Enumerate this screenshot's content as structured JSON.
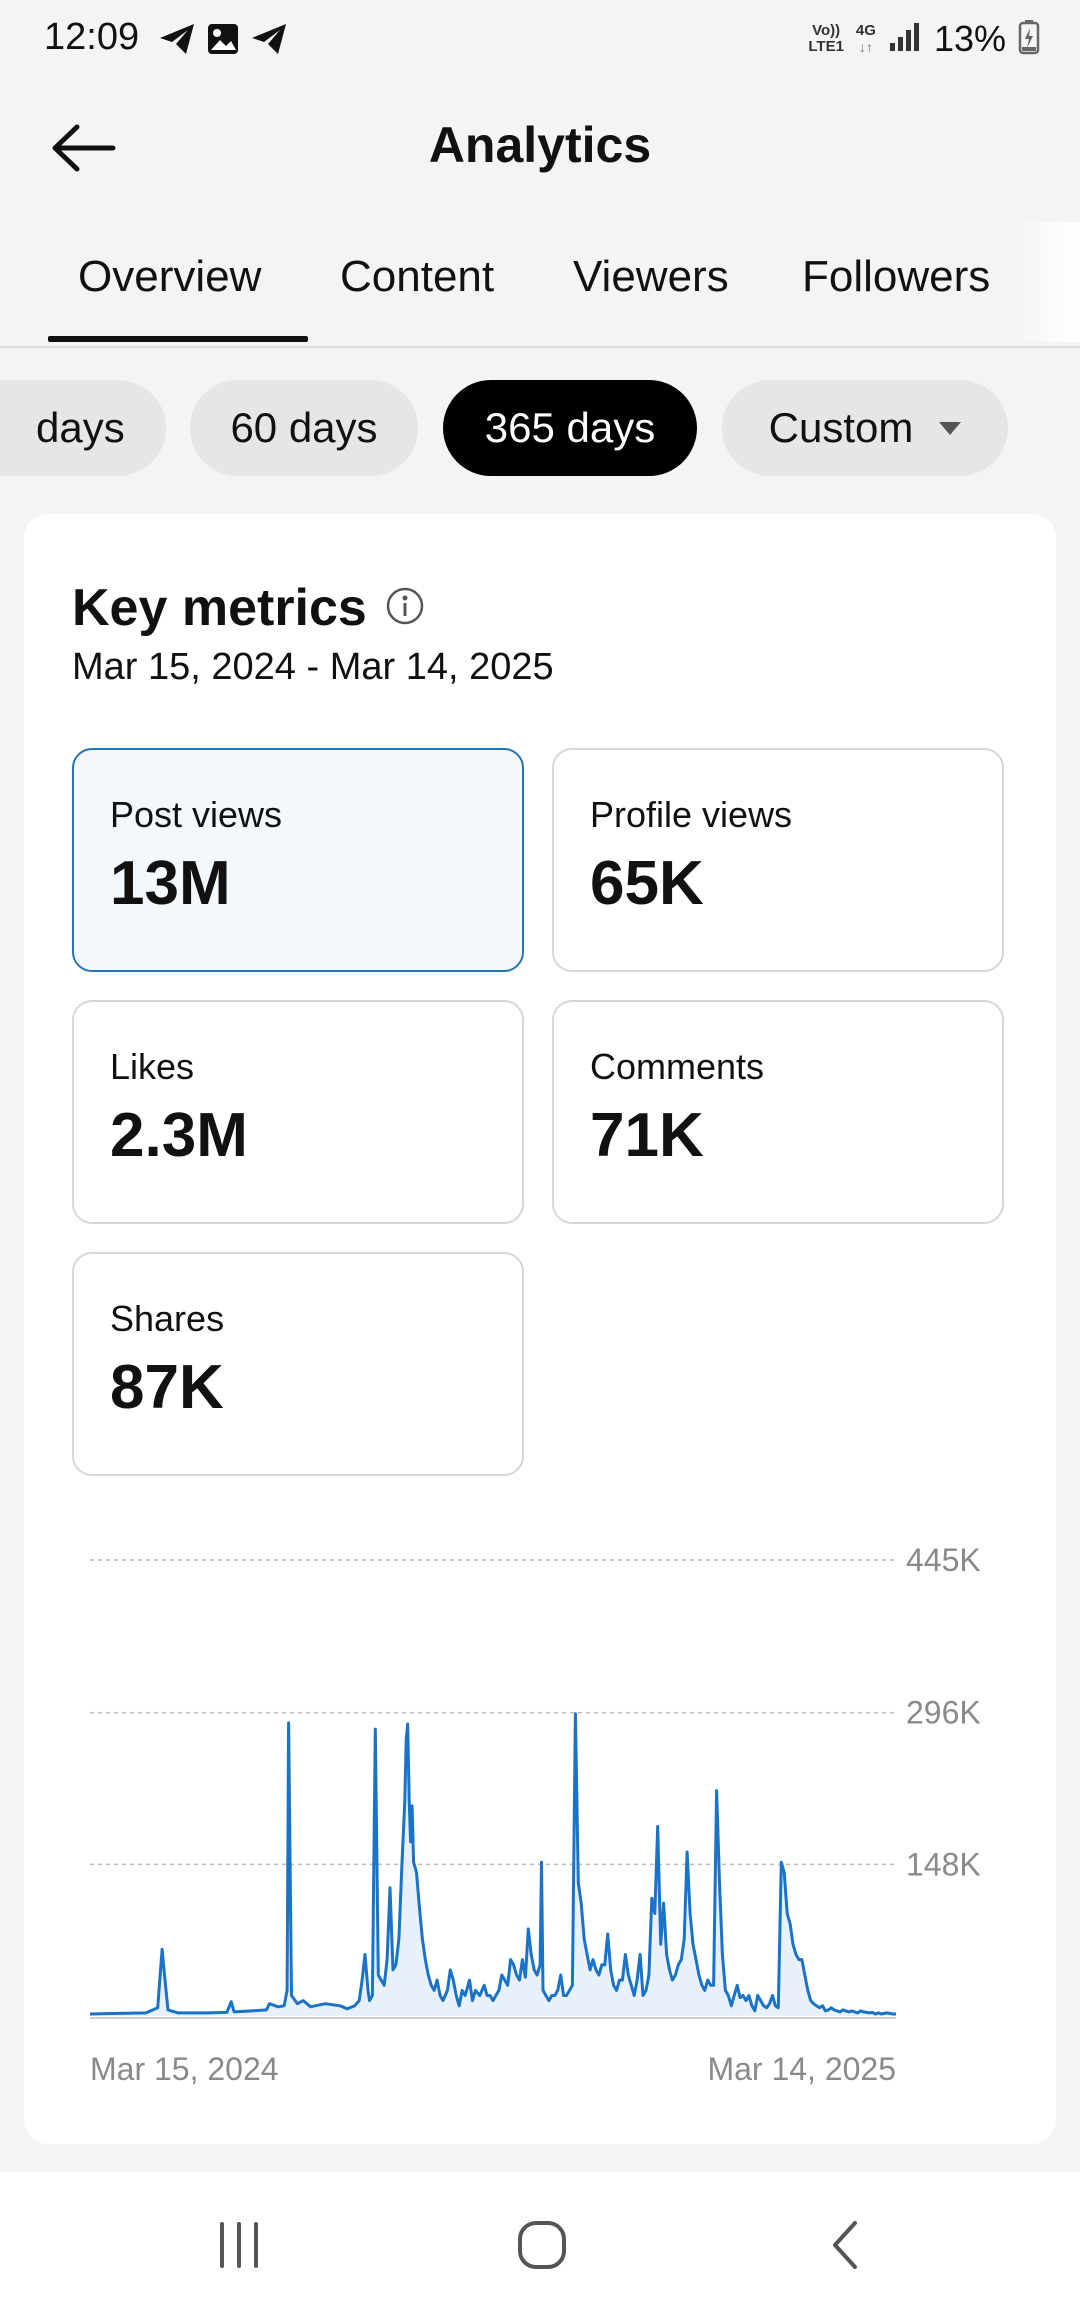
{
  "status_bar": {
    "time": "12:09",
    "net_top": "Vo))",
    "net_bottom": "LTE1",
    "net_type": "4G",
    "battery": "13%",
    "icons": [
      "telegram-icon",
      "image-icon",
      "telegram-icon",
      "signal-icon",
      "battery-icon"
    ]
  },
  "header": {
    "title": "Analytics",
    "back_icon": "arrow-left-icon"
  },
  "tabs": [
    {
      "label": "Overview",
      "selected": true
    },
    {
      "label": "Content"
    },
    {
      "label": "Viewers"
    },
    {
      "label": "Followers"
    }
  ],
  "ranges": [
    {
      "label": "days"
    },
    {
      "label": "60 days"
    },
    {
      "label": "365 days",
      "selected": true
    },
    {
      "label": "Custom"
    }
  ],
  "key_metrics": {
    "title": "Key metrics",
    "info_icon": "info-icon",
    "date_range": "Mar 15, 2024 - Mar 14, 2025",
    "metrics": [
      {
        "label": "Post views",
        "value": "13M",
        "selected": true
      },
      {
        "label": "Profile views",
        "value": "65K"
      },
      {
        "label": "Likes",
        "value": "2.3M"
      },
      {
        "label": "Comments",
        "value": "71K"
      },
      {
        "label": "Shares",
        "value": "87K"
      }
    ]
  },
  "chart_data": {
    "type": "area",
    "title": "",
    "xlabel": "",
    "ylabel": "",
    "x_tick_labels": [
      "Mar 15, 2024",
      "Mar 14, 2025"
    ],
    "y_tick_labels": [
      "445K",
      "296K",
      "148K"
    ],
    "y_ticks": [
      445000,
      296000,
      148000
    ],
    "ylim": [
      0,
      445000
    ],
    "x_range": [
      "2024-03-15",
      "2025-03-14"
    ],
    "grid": true,
    "colors": {
      "line": "#1a73c8",
      "fill": "#e8f1fb"
    },
    "series": [
      {
        "values": [
          [
            0,
            2000
          ],
          [
            20,
            2500
          ],
          [
            38,
            3000
          ],
          [
            46,
            8000
          ],
          [
            49,
            65000
          ],
          [
            51,
            35000
          ],
          [
            53,
            6000
          ],
          [
            60,
            3000
          ],
          [
            80,
            3000
          ],
          [
            93,
            3500
          ],
          [
            96,
            14000
          ],
          [
            98,
            4000
          ],
          [
            110,
            5000
          ],
          [
            120,
            6000
          ],
          [
            122,
            12000
          ],
          [
            128,
            9000
          ],
          [
            132,
            10000
          ],
          [
            134,
            25000
          ],
          [
            135,
            286000
          ],
          [
            137,
            20000
          ],
          [
            141,
            12000
          ],
          [
            145,
            15000
          ],
          [
            150,
            9000
          ],
          [
            160,
            12000
          ],
          [
            170,
            10000
          ],
          [
            175,
            7000
          ],
          [
            180,
            10000
          ],
          [
            183,
            15000
          ],
          [
            185,
            35000
          ],
          [
            187,
            60000
          ],
          [
            189,
            25000
          ],
          [
            190,
            15000
          ],
          [
            192,
            20000
          ],
          [
            194,
            280000
          ],
          [
            196,
            40000
          ],
          [
            198,
            35000
          ],
          [
            200,
            30000
          ],
          [
            202,
            55000
          ],
          [
            204,
            125000
          ],
          [
            206,
            45000
          ],
          [
            208,
            50000
          ],
          [
            210,
            75000
          ],
          [
            212,
            145000
          ],
          [
            214,
            210000
          ],
          [
            215,
            270000
          ],
          [
            216,
            285000
          ],
          [
            217,
            210000
          ],
          [
            218,
            170000
          ],
          [
            219,
            205000
          ],
          [
            220,
            150000
          ],
          [
            222,
            140000
          ],
          [
            224,
            105000
          ],
          [
            226,
            75000
          ],
          [
            228,
            55000
          ],
          [
            230,
            40000
          ],
          [
            232,
            30000
          ],
          [
            234,
            25000
          ],
          [
            236,
            35000
          ],
          [
            238,
            20000
          ],
          [
            240,
            15000
          ],
          [
            243,
            25000
          ],
          [
            245,
            45000
          ],
          [
            247,
            35000
          ],
          [
            249,
            20000
          ],
          [
            251,
            10000
          ],
          [
            253,
            25000
          ],
          [
            255,
            20000
          ],
          [
            258,
            35000
          ],
          [
            260,
            15000
          ],
          [
            262,
            25000
          ],
          [
            265,
            20000
          ],
          [
            268,
            30000
          ],
          [
            270,
            20000
          ],
          [
            272,
            20000
          ],
          [
            274,
            15000
          ],
          [
            276,
            20000
          ],
          [
            278,
            25000
          ],
          [
            280,
            40000
          ],
          [
            282,
            35000
          ],
          [
            284,
            30000
          ],
          [
            286,
            55000
          ],
          [
            288,
            50000
          ],
          [
            290,
            40000
          ],
          [
            292,
            35000
          ],
          [
            294,
            55000
          ],
          [
            296,
            38000
          ],
          [
            298,
            85000
          ],
          [
            300,
            60000
          ],
          [
            302,
            45000
          ],
          [
            304,
            40000
          ],
          [
            306,
            50000
          ],
          [
            307,
            150000
          ],
          [
            308,
            25000
          ],
          [
            310,
            20000
          ],
          [
            312,
            15000
          ],
          [
            314,
            20000
          ],
          [
            316,
            20000
          ],
          [
            318,
            25000
          ],
          [
            320,
            40000
          ],
          [
            322,
            20000
          ],
          [
            324,
            20000
          ],
          [
            326,
            25000
          ],
          [
            328,
            30000
          ],
          [
            330,
            295000
          ],
          [
            332,
            130000
          ],
          [
            334,
            110000
          ],
          [
            336,
            75000
          ],
          [
            338,
            60000
          ],
          [
            340,
            45000
          ],
          [
            342,
            55000
          ],
          [
            344,
            45000
          ],
          [
            346,
            40000
          ],
          [
            348,
            50000
          ],
          [
            350,
            50000
          ],
          [
            352,
            80000
          ],
          [
            354,
            45000
          ],
          [
            356,
            30000
          ],
          [
            358,
            25000
          ],
          [
            360,
            35000
          ],
          [
            362,
            35000
          ],
          [
            364,
            60000
          ],
          [
            366,
            40000
          ],
          [
            368,
            30000
          ],
          [
            370,
            20000
          ],
          [
            372,
            35000
          ],
          [
            374,
            60000
          ],
          [
            376,
            20000
          ],
          [
            378,
            25000
          ],
          [
            380,
            40000
          ],
          [
            382,
            115000
          ],
          [
            384,
            100000
          ],
          [
            386,
            185000
          ],
          [
            388,
            70000
          ],
          [
            390,
            110000
          ],
          [
            392,
            60000
          ],
          [
            394,
            45000
          ],
          [
            396,
            35000
          ],
          [
            398,
            40000
          ],
          [
            400,
            50000
          ],
          [
            402,
            55000
          ],
          [
            404,
            75000
          ],
          [
            406,
            160000
          ],
          [
            408,
            100000
          ],
          [
            410,
            70000
          ],
          [
            412,
            55000
          ],
          [
            414,
            40000
          ],
          [
            416,
            30000
          ],
          [
            418,
            25000
          ],
          [
            420,
            35000
          ],
          [
            422,
            30000
          ],
          [
            424,
            30000
          ],
          [
            426,
            220000
          ],
          [
            428,
            130000
          ],
          [
            430,
            60000
          ],
          [
            432,
            25000
          ],
          [
            434,
            20000
          ],
          [
            436,
            10000
          ],
          [
            438,
            20000
          ],
          [
            440,
            30000
          ],
          [
            442,
            18000
          ],
          [
            444,
            20000
          ],
          [
            446,
            15000
          ],
          [
            448,
            20000
          ],
          [
            450,
            10000
          ],
          [
            452,
            5000
          ],
          [
            454,
            20000
          ],
          [
            456,
            15000
          ],
          [
            458,
            10000
          ],
          [
            460,
            8000
          ],
          [
            462,
            12000
          ],
          [
            464,
            20000
          ],
          [
            466,
            10000
          ],
          [
            468,
            8000
          ],
          [
            470,
            150000
          ],
          [
            472,
            140000
          ],
          [
            474,
            100000
          ],
          [
            476,
            90000
          ],
          [
            478,
            70000
          ],
          [
            480,
            60000
          ],
          [
            482,
            55000
          ],
          [
            484,
            55000
          ],
          [
            486,
            40000
          ],
          [
            488,
            25000
          ],
          [
            490,
            15000
          ],
          [
            492,
            12000
          ],
          [
            494,
            10000
          ],
          [
            496,
            8000
          ],
          [
            498,
            10000
          ],
          [
            500,
            5000
          ],
          [
            502,
            6000
          ],
          [
            504,
            8000
          ],
          [
            506,
            6000
          ],
          [
            508,
            5000
          ],
          [
            510,
            4000
          ],
          [
            512,
            6000
          ],
          [
            514,
            5000
          ],
          [
            516,
            4000
          ],
          [
            518,
            5000
          ],
          [
            520,
            4000
          ],
          [
            522,
            3000
          ],
          [
            524,
            5000
          ],
          [
            526,
            4000
          ],
          [
            528,
            3500
          ],
          [
            530,
            3000
          ],
          [
            532,
            3500
          ],
          [
            534,
            2000
          ],
          [
            536,
            3000
          ],
          [
            538,
            2000
          ],
          [
            540,
            2500
          ],
          [
            542,
            3000
          ],
          [
            544,
            2500
          ],
          [
            546,
            2000
          ],
          [
            548,
            2000
          ]
        ]
      }
    ]
  },
  "navbar": {
    "recents_icon": "recents-icon",
    "home_icon": "home-icon",
    "back_icon": "nav-back-icon"
  }
}
